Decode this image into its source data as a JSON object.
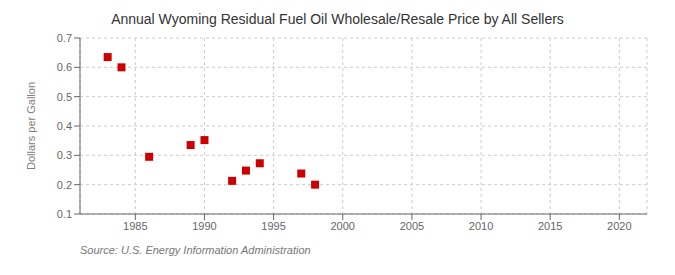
{
  "chart_data": {
    "type": "scatter",
    "title": "Annual Wyoming Residual Fuel Oil Wholesale/Resale Price by All Sellers",
    "ylabel": "Dollars per Gallon",
    "annotations": [
      "Source: U.S. Energy Information Administration"
    ],
    "x": [
      1983,
      1984,
      1986,
      1989,
      1990,
      1992,
      1993,
      1994,
      1997,
      1998
    ],
    "values": [
      0.635,
      0.6,
      0.295,
      0.335,
      0.352,
      0.213,
      0.248,
      0.273,
      0.238,
      0.2
    ],
    "xlim": [
      1981,
      2022
    ],
    "ylim": [
      0.1,
      0.7
    ],
    "xticks": [
      1985,
      1990,
      1995,
      2000,
      2005,
      2010,
      2015,
      2020
    ],
    "yticks": [
      0.1,
      0.2,
      0.3,
      0.4,
      0.5,
      0.6,
      0.7
    ],
    "color": "#cc0000",
    "marker": "square",
    "grid": true
  }
}
